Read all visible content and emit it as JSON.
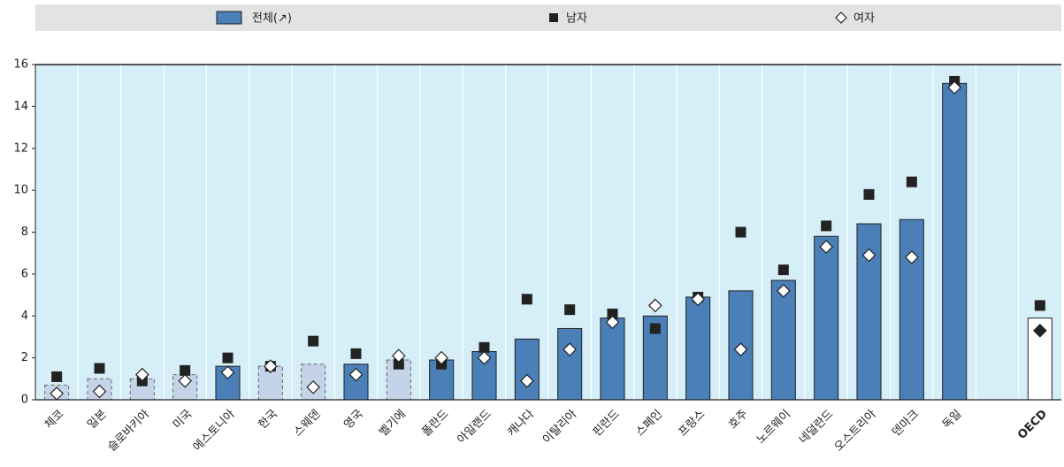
{
  "chart_data": {
    "type": "bar",
    "categories": [
      "체코",
      "일본",
      "슬로바키아",
      "미국",
      "에스토니아",
      "한국",
      "스웨덴",
      "영국",
      "벨기에",
      "폴란드",
      "아일랜드",
      "캐나다",
      "이탈리아",
      "핀란드",
      "스페인",
      "프랑스",
      "호주",
      "노르웨이",
      "네덜란드",
      "오스트리아",
      "덴마크",
      "독일",
      null,
      "OECD"
    ],
    "series": [
      {
        "name": "전체(↗)",
        "color": "#4a7fb8",
        "values": [
          0.7,
          1.0,
          1.0,
          1.2,
          1.6,
          1.6,
          1.7,
          1.7,
          1.9,
          1.9,
          2.3,
          2.9,
          3.4,
          3.9,
          4.0,
          4.9,
          5.2,
          5.7,
          7.8,
          8.4,
          8.6,
          15.1,
          null,
          3.9
        ],
        "bar_colors": [
          "#c5d3e8",
          "#c5d3e8",
          "#c5d3e8",
          "#c5d3e8",
          "#4a7fb8",
          "#c5d3e8",
          "#c5d3e8",
          "#4a7fb8",
          "#c5d3e8",
          "#4a7fb8",
          "#4a7fb8",
          "#4a7fb8",
          "#4a7fb8",
          "#4a7fb8",
          "#4a7fb8",
          "#4a7fb8",
          "#4a7fb8",
          "#4a7fb8",
          "#4a7fb8",
          "#4a7fb8",
          "#4a7fb8",
          "#4a7fb8",
          null,
          "#ffffff"
        ],
        "dashed": [
          true,
          true,
          true,
          true,
          false,
          true,
          true,
          false,
          true,
          false,
          false,
          false,
          false,
          false,
          false,
          false,
          false,
          false,
          false,
          false,
          false,
          false,
          null,
          false
        ]
      },
      {
        "name": "남자",
        "color": "#222222",
        "marker": "square",
        "values": [
          1.1,
          1.5,
          0.9,
          1.4,
          2.0,
          1.6,
          2.8,
          2.2,
          1.7,
          1.7,
          2.5,
          4.8,
          4.3,
          4.1,
          3.4,
          4.9,
          8.0,
          6.2,
          8.3,
          9.8,
          10.4,
          15.2,
          null,
          4.5
        ]
      },
      {
        "name": "여자",
        "color": "#ffffff",
        "marker": "diamond",
        "point_colors": [
          "#ffffff",
          "#ffffff",
          "#ffffff",
          "#ffffff",
          "#ffffff",
          "#ffffff",
          "#ffffff",
          "#ffffff",
          "#ffffff",
          "#ffffff",
          "#ffffff",
          "#ffffff",
          "#ffffff",
          "#ffffff",
          "#ffffff",
          "#ffffff",
          "#ffffff",
          "#ffffff",
          "#ffffff",
          "#ffffff",
          "#ffffff",
          "#ffffff",
          null,
          "#222222"
        ],
        "values": [
          0.3,
          0.4,
          1.2,
          0.9,
          1.3,
          1.6,
          0.6,
          1.2,
          2.1,
          2.0,
          2.0,
          0.9,
          2.4,
          3.7,
          4.5,
          4.8,
          2.4,
          5.2,
          7.3,
          6.9,
          6.8,
          14.9,
          null,
          3.3
        ]
      }
    ],
    "ylim": [
      0,
      16
    ],
    "yticks": [
      0,
      2,
      4,
      6,
      8,
      10,
      12,
      14,
      16
    ],
    "grid": true
  }
}
